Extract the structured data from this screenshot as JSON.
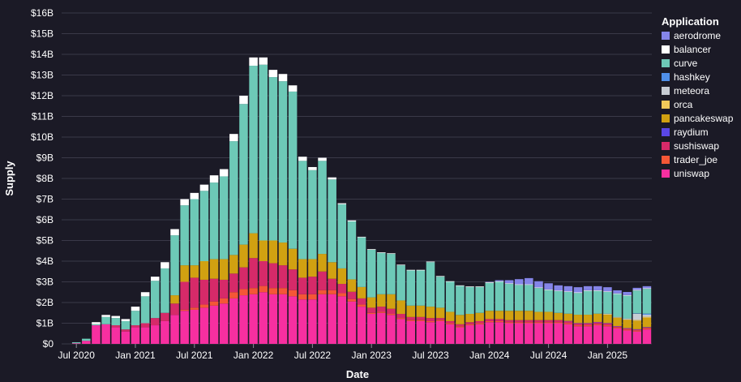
{
  "chart_data": {
    "type": "bar",
    "stacked": true,
    "xlabel": "Date",
    "ylabel": "Supply",
    "ylim": [
      0,
      16
    ],
    "yticks": [
      "$0",
      "$1B",
      "$2B",
      "$3B",
      "$4B",
      "$5B",
      "$6B",
      "$7B",
      "$8B",
      "$9B",
      "$10B",
      "$11B",
      "$12B",
      "$13B",
      "$14B",
      "$15B",
      "$16B"
    ],
    "xticks": [
      {
        "label": "Jul 2020",
        "at": "2020-07"
      },
      {
        "label": "Jan 2021",
        "at": "2021-01"
      },
      {
        "label": "Jul 2021",
        "at": "2021-07"
      },
      {
        "label": "Jan 2022",
        "at": "2022-01"
      },
      {
        "label": "Jul 2022",
        "at": "2022-07"
      },
      {
        "label": "Jan 2023",
        "at": "2023-01"
      },
      {
        "label": "Jul 2023",
        "at": "2023-07"
      },
      {
        "label": "Jan 2024",
        "at": "2024-01"
      },
      {
        "label": "Jul 2024",
        "at": "2024-07"
      },
      {
        "label": "Jan 2025",
        "at": "2025-01"
      }
    ],
    "legend_title": "Application",
    "legend_position": "right",
    "units": "billions USD",
    "categories": [
      "2020-06",
      "2020-07",
      "2020-08",
      "2020-09",
      "2020-10",
      "2020-11",
      "2020-12",
      "2021-01",
      "2021-02",
      "2021-03",
      "2021-04",
      "2021-05",
      "2021-06",
      "2021-07",
      "2021-08",
      "2021-09",
      "2021-10",
      "2021-11",
      "2021-12",
      "2022-01",
      "2022-02",
      "2022-03",
      "2022-04",
      "2022-05",
      "2022-06",
      "2022-07",
      "2022-08",
      "2022-09",
      "2022-10",
      "2022-11",
      "2022-12",
      "2023-01",
      "2023-02",
      "2023-03",
      "2023-04",
      "2023-05",
      "2023-06",
      "2023-07",
      "2023-08",
      "2023-09",
      "2023-10",
      "2023-11",
      "2023-12",
      "2024-01",
      "2024-02",
      "2024-03",
      "2024-04",
      "2024-05",
      "2024-06",
      "2024-07",
      "2024-08",
      "2024-09",
      "2024-10",
      "2024-11",
      "2024-12",
      "2025-01",
      "2025-02",
      "2025-03",
      "2025-04",
      "2025-05"
    ],
    "series": [
      {
        "name": "uniswap",
        "color": "#f72fa0",
        "values": [
          0,
          0.03,
          0.15,
          0.9,
          0.95,
          0.8,
          0.6,
          0.8,
          0.8,
          0.9,
          1.1,
          1.4,
          1.6,
          1.65,
          1.75,
          1.85,
          1.95,
          2.2,
          2.35,
          2.4,
          2.5,
          2.4,
          2.4,
          2.3,
          2.15,
          2.15,
          2.4,
          2.4,
          2.3,
          2.05,
          1.8,
          1.45,
          1.5,
          1.4,
          1.2,
          1.1,
          1.1,
          1.05,
          1.1,
          0.95,
          0.8,
          0.9,
          0.95,
          1.05,
          1.05,
          1.0,
          1.0,
          1.0,
          1.0,
          1.0,
          1.0,
          0.95,
          0.85,
          0.85,
          0.9,
          0.85,
          0.75,
          0.65,
          0.6,
          0.7
        ]
      },
      {
        "name": "trader_joe",
        "color": "#f45736",
        "values": [
          0,
          0,
          0,
          0,
          0,
          0,
          0,
          0,
          0,
          0,
          0,
          0,
          0.05,
          0.1,
          0.15,
          0.2,
          0.25,
          0.3,
          0.3,
          0.3,
          0.3,
          0.3,
          0.3,
          0.3,
          0.25,
          0.25,
          0.2,
          0.2,
          0.15,
          0.12,
          0.1,
          0.05,
          0.05,
          0.05,
          0.05,
          0.05,
          0.05,
          0.05,
          0.05,
          0.05,
          0.05,
          0.05,
          0.05,
          0.05,
          0.05,
          0.05,
          0.05,
          0.05,
          0.05,
          0.05,
          0.05,
          0.05,
          0.05,
          0.05,
          0.05,
          0.05,
          0.05,
          0.05,
          0.05,
          0.05
        ]
      },
      {
        "name": "sushiswap",
        "color": "#d62a69",
        "values": [
          0,
          0,
          0,
          0,
          0,
          0.1,
          0.1,
          0.1,
          0.2,
          0.35,
          0.4,
          0.55,
          1.35,
          1.45,
          1.2,
          1.1,
          0.9,
          0.9,
          1.05,
          1.45,
          1.2,
          1.2,
          1.1,
          1.0,
          0.8,
          0.85,
          0.9,
          0.55,
          0.45,
          0.35,
          0.3,
          0.25,
          0.25,
          0.25,
          0.2,
          0.15,
          0.15,
          0.15,
          0.1,
          0.1,
          0.1,
          0.1,
          0.1,
          0.1,
          0.1,
          0.1,
          0.1,
          0.1,
          0.1,
          0.1,
          0.1,
          0.1,
          0.1,
          0.1,
          0.1,
          0.1,
          0.05,
          0.05,
          0.05,
          0.05
        ]
      },
      {
        "name": "raydium",
        "color": "#5a47e6",
        "values": [
          0,
          0,
          0,
          0,
          0,
          0,
          0,
          0,
          0,
          0,
          0,
          0,
          0,
          0,
          0,
          0,
          0,
          0,
          0,
          0,
          0,
          0,
          0,
          0,
          0,
          0,
          0,
          0,
          0,
          0,
          0,
          0,
          0,
          0,
          0,
          0,
          0,
          0,
          0,
          0,
          0,
          0,
          0,
          0,
          0,
          0,
          0,
          0,
          0,
          0,
          0,
          0.01,
          0.01,
          0.01,
          0.01,
          0.01,
          0.01,
          0.01,
          0.01,
          0.01
        ]
      },
      {
        "name": "pancakeswap",
        "color": "#d1a111",
        "values": [
          0,
          0,
          0,
          0,
          0,
          0,
          0,
          0,
          0,
          0,
          0,
          0.4,
          0.8,
          0.6,
          0.9,
          0.95,
          1.0,
          0.9,
          1.1,
          1.2,
          1.0,
          1.1,
          1.1,
          1.0,
          0.9,
          0.85,
          0.85,
          0.8,
          0.75,
          0.6,
          0.55,
          0.5,
          0.6,
          0.7,
          0.65,
          0.55,
          0.55,
          0.55,
          0.5,
          0.45,
          0.45,
          0.4,
          0.4,
          0.4,
          0.4,
          0.45,
          0.45,
          0.45,
          0.4,
          0.4,
          0.35,
          0.35,
          0.4,
          0.4,
          0.4,
          0.4,
          0.4,
          0.4,
          0.4,
          0.45
        ]
      },
      {
        "name": "orca",
        "color": "#f0c95a",
        "values": [
          0,
          0,
          0,
          0,
          0,
          0,
          0,
          0,
          0,
          0,
          0,
          0,
          0,
          0,
          0,
          0,
          0,
          0,
          0,
          0,
          0,
          0,
          0,
          0,
          0,
          0,
          0,
          0,
          0,
          0,
          0,
          0,
          0,
          0,
          0,
          0,
          0,
          0,
          0,
          0,
          0,
          0,
          0,
          0,
          0,
          0,
          0,
          0,
          0,
          0,
          0,
          0,
          0,
          0,
          0,
          0.02,
          0.02,
          0.02,
          0.05,
          0.05
        ]
      },
      {
        "name": "meteora",
        "color": "#c7ccd4",
        "values": [
          0,
          0,
          0,
          0,
          0,
          0,
          0,
          0,
          0,
          0,
          0,
          0,
          0,
          0,
          0,
          0,
          0,
          0,
          0,
          0,
          0,
          0,
          0,
          0,
          0,
          0,
          0,
          0,
          0,
          0,
          0,
          0,
          0,
          0,
          0,
          0,
          0,
          0,
          0,
          0,
          0,
          0,
          0,
          0,
          0,
          0,
          0,
          0,
          0,
          0,
          0,
          0,
          0,
          0,
          0,
          0.03,
          0.03,
          0.05,
          0.3,
          0.1
        ]
      },
      {
        "name": "hashkey",
        "color": "#4f8fe8",
        "values": [
          0,
          0,
          0,
          0,
          0,
          0,
          0,
          0,
          0,
          0,
          0,
          0,
          0,
          0,
          0,
          0,
          0,
          0,
          0,
          0,
          0,
          0,
          0,
          0,
          0,
          0,
          0,
          0,
          0,
          0,
          0,
          0,
          0,
          0,
          0,
          0,
          0,
          0,
          0,
          0,
          0,
          0,
          0,
          0,
          0,
          0,
          0,
          0,
          0,
          0,
          0,
          0,
          0,
          0,
          0,
          0,
          0,
          0,
          0.02,
          0.05
        ]
      },
      {
        "name": "curve",
        "color": "#6dc9b7",
        "values": [
          0,
          0.05,
          0.1,
          0.05,
          0.35,
          0.35,
          0.4,
          0.7,
          1.3,
          1.8,
          2.15,
          2.9,
          2.9,
          3.2,
          3.4,
          3.7,
          4.0,
          5.5,
          6.8,
          8.1,
          8.5,
          7.9,
          7.8,
          7.6,
          4.75,
          4.3,
          4.5,
          4.0,
          3.1,
          2.8,
          2.4,
          2.3,
          2.0,
          1.95,
          1.7,
          1.7,
          1.7,
          2.15,
          1.5,
          1.45,
          1.4,
          1.3,
          1.25,
          1.35,
          1.4,
          1.3,
          1.25,
          1.25,
          1.15,
          1.05,
          1.05,
          1.05,
          1.05,
          1.15,
          1.1,
          1.05,
          1.1,
          1.1,
          1.1,
          1.2
        ]
      },
      {
        "name": "balancer",
        "color": "#ffffff",
        "values": [
          0,
          0,
          0,
          0.1,
          0.1,
          0.1,
          0.1,
          0.2,
          0.2,
          0.2,
          0.3,
          0.3,
          0.3,
          0.3,
          0.3,
          0.35,
          0.35,
          0.35,
          0.4,
          0.4,
          0.35,
          0.35,
          0.35,
          0.3,
          0.2,
          0.15,
          0.15,
          0.1,
          0.05,
          0.05,
          0.03,
          0.03,
          0.03,
          0.03,
          0.03,
          0.03,
          0.03,
          0.03,
          0.03,
          0.03,
          0.03,
          0.03,
          0.03,
          0.03,
          0.03,
          0.03,
          0.03,
          0.03,
          0.03,
          0.03,
          0.03,
          0.03,
          0.03,
          0.03,
          0.03,
          0.03,
          0.03,
          0.03,
          0.03,
          0.03
        ]
      },
      {
        "name": "aerodrome",
        "color": "#8585e8",
        "values": [
          0,
          0,
          0,
          0,
          0,
          0,
          0,
          0,
          0,
          0,
          0,
          0,
          0,
          0,
          0,
          0,
          0,
          0,
          0,
          0,
          0,
          0,
          0,
          0,
          0,
          0,
          0,
          0,
          0,
          0,
          0,
          0,
          0,
          0,
          0,
          0,
          0,
          0,
          0,
          0,
          0,
          0,
          0,
          0.02,
          0.05,
          0.15,
          0.25,
          0.3,
          0.3,
          0.3,
          0.25,
          0.25,
          0.25,
          0.2,
          0.2,
          0.2,
          0.15,
          0.15,
          0.1,
          0.1
        ]
      }
    ],
    "legend_order": [
      "aerodrome",
      "balancer",
      "curve",
      "hashkey",
      "meteora",
      "orca",
      "pancakeswap",
      "raydium",
      "sushiswap",
      "trader_joe",
      "uniswap"
    ]
  }
}
